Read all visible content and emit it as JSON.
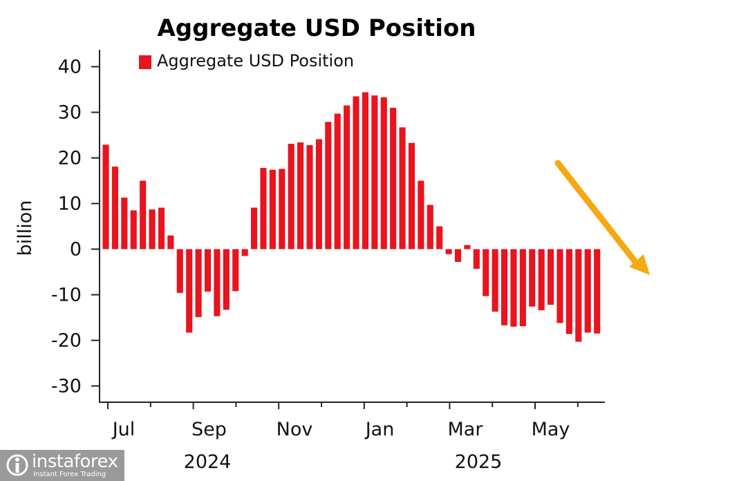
{
  "chart_data": {
    "type": "bar",
    "title": "Aggregate USD Position",
    "ylabel": "billion",
    "ylim": [
      -33,
      44
    ],
    "yticks": [
      40,
      30,
      20,
      10,
      0,
      -10,
      -20,
      -30
    ],
    "ytick_labels": [
      "40",
      "30",
      "20",
      "10",
      "0",
      "-10",
      "-20",
      "-30"
    ],
    "x_month_labels": [
      "Jul",
      "Sep",
      "Nov",
      "Jan",
      "Mar",
      "May"
    ],
    "x_year_labels": [
      "2024",
      "2025"
    ],
    "legend_position": "top-left",
    "series": [
      {
        "name": "Aggregate USD Position",
        "color": "#e8141e",
        "values": [
          22.9,
          18.1,
          11.3,
          8.5,
          15.0,
          8.7,
          9.1,
          3.0,
          -9.6,
          -18.3,
          -14.9,
          -9.3,
          -14.7,
          -13.3,
          -9.2,
          -1.5,
          9.1,
          17.8,
          17.4,
          17.6,
          23.1,
          23.4,
          22.8,
          24.1,
          27.9,
          29.7,
          31.5,
          33.5,
          34.4,
          33.7,
          33.3,
          31.0,
          26.7,
          23.3,
          15.0,
          9.7,
          5.0,
          -1.1,
          -2.8,
          0.9,
          -4.3,
          -10.3,
          -13.7,
          -16.7,
          -17.0,
          -16.9,
          -12.6,
          -13.4,
          -12.2,
          -16.2,
          -18.6,
          -20.3,
          -18.3,
          -18.5
        ]
      }
    ],
    "annotation": {
      "type": "arrow",
      "color": "#f5a812",
      "direction": "down-right"
    }
  },
  "logo": {
    "brand": "instaforex",
    "tagline": "Instant Forex Trading",
    "icon": "instaforex-logo-icon",
    "bg_color": "#9a9a9a"
  }
}
